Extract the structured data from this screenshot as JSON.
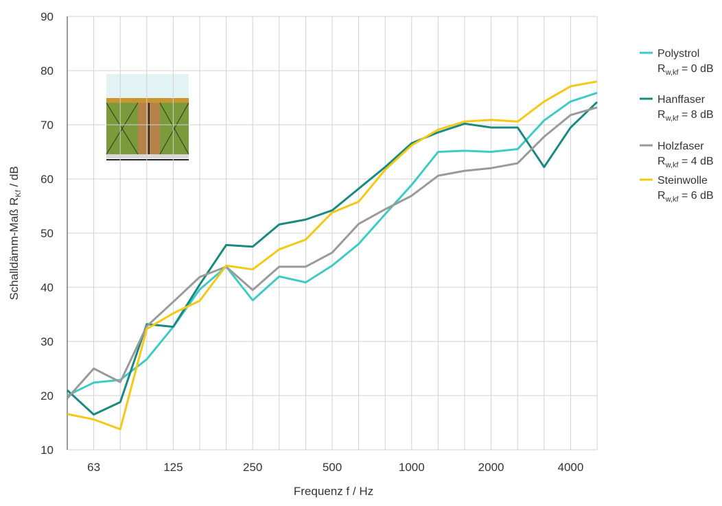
{
  "chart_data": {
    "type": "line",
    "x_label": "Frequenz f / Hz",
    "y_label": {
      "text": "Schalldämm-Maß R",
      "sub": "Kf",
      "rest": " / dB"
    },
    "categories": [
      null,
      "63",
      null,
      null,
      "125",
      null,
      null,
      "250",
      null,
      null,
      "500",
      null,
      null,
      "1000",
      null,
      null,
      "2000",
      null,
      null,
      "4000",
      null
    ],
    "ylim": [
      10,
      90
    ],
    "yticks": [
      10,
      20,
      30,
      40,
      50,
      60,
      70,
      80,
      90
    ],
    "grid": true,
    "legend": "right",
    "series": [
      {
        "name": "Polystrol",
        "color": "#3ecbc8",
        "rating": {
          "base": "R",
          "sub": "w,kf",
          "rest": " = 0 dB"
        },
        "values": [
          20,
          22.4,
          22.9,
          26.7,
          32.7,
          39.6,
          43.8,
          37.6,
          42,
          40.9,
          44,
          48,
          53.5,
          58.9,
          65,
          65.2,
          65,
          65.5,
          70.8,
          74.3,
          75.9
        ]
      },
      {
        "name": "Hanffaser",
        "color": "#1a8a80",
        "rating": {
          "base": "R",
          "sub": "w,kf",
          "rest": " = 8 dB"
        },
        "values": [
          21,
          16.5,
          18.8,
          33.2,
          32.7,
          40.5,
          47.8,
          47.5,
          51.6,
          52.5,
          54.2,
          58.2,
          62.2,
          66.6,
          68.6,
          70.2,
          69.5,
          69.5,
          62.2,
          69.5,
          74.2
        ]
      },
      {
        "name": "Holzfaser",
        "color": "#9a9a9a",
        "rating": {
          "base": "R",
          "sub": "w,kf",
          "rest": " = 4 dB"
        },
        "values": [
          19.5,
          25,
          22.5,
          32.8,
          37.3,
          41.9,
          43.8,
          39.5,
          43.8,
          43.8,
          46.4,
          51.7,
          54.4,
          56.9,
          60.6,
          61.5,
          62,
          62.9,
          67.8,
          71.8,
          73.2
        ]
      },
      {
        "name": "Steinwolle",
        "color": "#f5c816",
        "rating": {
          "base": "R",
          "sub": "w,kf",
          "rest": " = 6 dB"
        },
        "values": [
          16.6,
          15.6,
          13.8,
          32.3,
          35.2,
          37.5,
          44,
          43.3,
          47,
          48.8,
          53.8,
          55.8,
          61.7,
          66.2,
          69.1,
          70.6,
          70.9,
          70.6,
          74.3,
          77.1,
          78
        ]
      }
    ]
  }
}
